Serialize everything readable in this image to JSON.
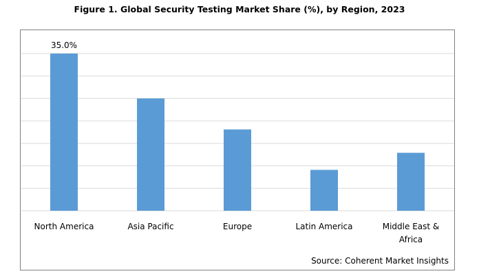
{
  "chart_data": {
    "type": "bar",
    "title": "Figure 1. Global Security Testing Market Share (%), by Region, 2023",
    "categories": [
      [
        "North America"
      ],
      [
        "Asia Pacific"
      ],
      [
        "Europe"
      ],
      [
        "Latin America"
      ],
      [
        "Middle East &",
        "Africa"
      ]
    ],
    "values": [
      35.0,
      25.0,
      18.1,
      9.1,
      12.9
    ],
    "data_labels": [
      "35.0%",
      "",
      "",
      "",
      ""
    ],
    "ylim": [
      0,
      35.0
    ],
    "grid": true,
    "bar_color": "#5b9bd5",
    "xlabel": "",
    "ylabel": "",
    "source": "Source: Coherent Market Insights"
  }
}
